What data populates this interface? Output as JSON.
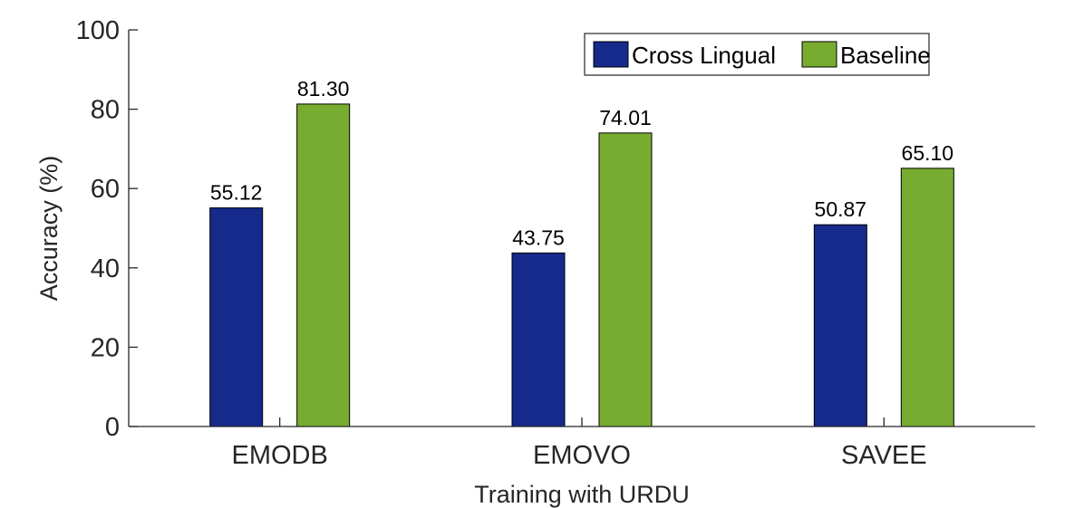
{
  "chart_data": {
    "type": "bar",
    "title": "",
    "xlabel": "Training with URDU",
    "ylabel": "Accuracy (%)",
    "categories": [
      "EMODB",
      "EMOVO",
      "SAVEE"
    ],
    "ylim": [
      0,
      100
    ],
    "yticks": [
      0,
      20,
      40,
      60,
      80,
      100
    ],
    "legend_placement": "top-right",
    "grid": false,
    "series": [
      {
        "name": "Cross Lingual",
        "color": "#152a8a",
        "values": [
          55.12,
          43.75,
          50.87
        ],
        "labels": [
          "55.12",
          "43.75",
          "50.87"
        ]
      },
      {
        "name": "Baseline",
        "color": "#77ac30",
        "values": [
          81.3,
          74.01,
          65.1
        ],
        "labels": [
          "81.30",
          "74.01",
          "65.10"
        ]
      }
    ]
  }
}
